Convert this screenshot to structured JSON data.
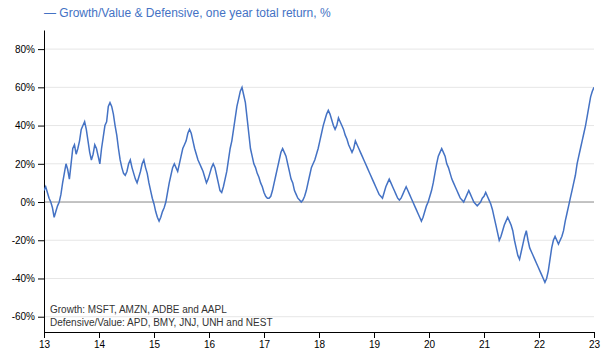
{
  "chart_data": {
    "type": "line",
    "title": "— Growth/Value & Defensive, one year total return, %",
    "annotations": [
      "Growth: MSFT, AMZN, ADBE and AAPL",
      "Defensive/Value: APD, BMY, JNJ, UNH and NEST"
    ],
    "color": "#4472C4",
    "grid": true,
    "xlim": [
      13,
      23
    ],
    "ylim": [
      -0.68,
      0.9
    ],
    "xticks": [
      13,
      14,
      15,
      16,
      17,
      18,
      19,
      20,
      21,
      22,
      23
    ],
    "yticks": [
      {
        "value": -0.6,
        "label": "-60%"
      },
      {
        "value": -0.4,
        "label": "-40%"
      },
      {
        "value": -0.2,
        "label": "-20%"
      },
      {
        "value": 0.0,
        "label": "0%"
      },
      {
        "value": 0.2,
        "label": "20%"
      },
      {
        "value": 0.4,
        "label": "40%"
      },
      {
        "value": 0.6,
        "label": "60%"
      },
      {
        "value": 0.8,
        "label": "80%"
      }
    ],
    "x": [
      13,
      13.0308,
      13.0615,
      13.0923,
      13.1231,
      13.1538,
      13.1846,
      13.2154,
      13.2462,
      13.2769,
      13.3077,
      13.3385,
      13.3692,
      13.4,
      13.4308,
      13.4615,
      13.4923,
      13.5231,
      13.5538,
      13.5846,
      13.6154,
      13.6462,
      13.6769,
      13.7077,
      13.7385,
      13.7692,
      13.8,
      13.8308,
      13.8615,
      13.8923,
      13.9231,
      13.9538,
      13.9846,
      14.0154,
      14.0462,
      14.0769,
      14.1077,
      14.1385,
      14.1692,
      14.2,
      14.2308,
      14.2615,
      14.2923,
      14.3231,
      14.3538,
      14.3846,
      14.4154,
      14.4462,
      14.4769,
      14.5077,
      14.5385,
      14.5692,
      14.6,
      14.6308,
      14.6615,
      14.6923,
      14.7231,
      14.7538,
      14.7846,
      14.8154,
      14.8462,
      14.8769,
      14.9077,
      14.9385,
      14.9692,
      15,
      15.0308,
      15.0615,
      15.0923,
      15.1231,
      15.1538,
      15.1846,
      15.2154,
      15.2462,
      15.2769,
      15.3077,
      15.3385,
      15.3692,
      15.4,
      15.4308,
      15.4615,
      15.4923,
      15.5231,
      15.5538,
      15.5846,
      15.6154,
      15.6462,
      15.6769,
      15.7077,
      15.7385,
      15.7692,
      15.8,
      15.8308,
      15.8615,
      15.8923,
      15.9231,
      15.9538,
      15.9846,
      16.0154,
      16.0462,
      16.0769,
      16.1077,
      16.1385,
      16.1692,
      16.2,
      16.2308,
      16.2615,
      16.2923,
      16.3231,
      16.3538,
      16.3846,
      16.4154,
      16.4462,
      16.4769,
      16.5077,
      16.5385,
      16.5692,
      16.6,
      16.6308,
      16.6615,
      16.6923,
      16.7231,
      16.7538,
      16.7846,
      16.8154,
      16.8462,
      16.8769,
      16.9077,
      16.9385,
      16.9692,
      17,
      17.0308,
      17.0615,
      17.0923,
      17.1231,
      17.1538,
      17.1846,
      17.2154,
      17.2462,
      17.2769,
      17.3077,
      17.3385,
      17.3692,
      17.4,
      17.4308,
      17.4615,
      17.4923,
      17.5231,
      17.5538,
      17.5846,
      17.6154,
      17.6462,
      17.6769,
      17.7077,
      17.7385,
      17.7692,
      17.8,
      17.8308,
      17.8615,
      17.8923,
      17.9231,
      17.9538,
      17.9846,
      18.0154,
      18.0462,
      18.0769,
      18.1077,
      18.1385,
      18.1692,
      18.2,
      18.2308,
      18.2615,
      18.2923,
      18.3231,
      18.3538,
      18.3846,
      18.4154,
      18.4462,
      18.4769,
      18.5077,
      18.5385,
      18.5692,
      18.6,
      18.6308,
      18.6615,
      18.6923,
      18.7231,
      18.7538,
      18.7846,
      18.8154,
      18.8462,
      18.8769,
      18.9077,
      18.9385,
      18.9692,
      19,
      19.0308,
      19.0615,
      19.0923,
      19.1231,
      19.1538,
      19.1846,
      19.2154,
      19.2462,
      19.2769,
      19.3077,
      19.3385,
      19.3692,
      19.4,
      19.4308,
      19.4615,
      19.4923,
      19.5231,
      19.5538,
      19.5846,
      19.6154,
      19.6462,
      19.6769,
      19.7077,
      19.7385,
      19.7692,
      19.8,
      19.8308,
      19.8615,
      19.8923,
      19.9231,
      19.9538,
      19.9846,
      20.0154,
      20.0462,
      20.0769,
      20.1077,
      20.1385,
      20.1692,
      20.2,
      20.2308,
      20.2615,
      20.2923,
      20.3231,
      20.3538,
      20.3846,
      20.4154,
      20.4462,
      20.4769,
      20.5077,
      20.5385,
      20.5692,
      20.6,
      20.6308,
      20.6615,
      20.6923,
      20.7231,
      20.7538,
      20.7846,
      20.8154,
      20.8462,
      20.8769,
      20.9077,
      20.9385,
      20.9692,
      21,
      21.0308,
      21.0615,
      21.0923,
      21.1231,
      21.1538,
      21.1846,
      21.2154,
      21.2462,
      21.2769,
      21.3077,
      21.3385,
      21.3692,
      21.4,
      21.4308,
      21.4615,
      21.4923,
      21.5231,
      21.5538,
      21.5846,
      21.6154,
      21.6462,
      21.6769,
      21.7077,
      21.7385,
      21.7692,
      21.8,
      21.8308,
      21.8615,
      21.8923,
      21.9231,
      21.9538,
      21.9846,
      22.0154,
      22.0462,
      22.0769,
      22.1077,
      22.1385,
      22.1692,
      22.2,
      22.2308,
      22.2615,
      22.2923,
      22.3231,
      22.3538,
      22.3846,
      22.4154,
      22.4462,
      22.4769,
      22.5077,
      22.5385,
      22.5692,
      22.6,
      22.6308,
      22.6615,
      22.6923,
      22.7231,
      22.7538,
      22.7846,
      22.8154,
      22.8462,
      22.8769,
      22.9077,
      22.9385,
      22.9692,
      23
    ],
    "values": [
      0.06,
      0.08,
      0.05,
      0.02,
      0.0,
      -0.03,
      -0.08,
      -0.05,
      -0.02,
      0.0,
      0.04,
      0.1,
      0.15,
      0.2,
      0.17,
      0.12,
      0.2,
      0.28,
      0.3,
      0.25,
      0.28,
      0.32,
      0.38,
      0.4,
      0.42,
      0.38,
      0.32,
      0.26,
      0.22,
      0.25,
      0.3,
      0.28,
      0.24,
      0.2,
      0.28,
      0.34,
      0.4,
      0.42,
      0.5,
      0.52,
      0.5,
      0.46,
      0.4,
      0.35,
      0.28,
      0.22,
      0.18,
      0.15,
      0.14,
      0.16,
      0.2,
      0.22,
      0.18,
      0.15,
      0.12,
      0.1,
      0.13,
      0.16,
      0.2,
      0.22,
      0.18,
      0.15,
      0.1,
      0.06,
      0.02,
      -0.01,
      -0.05,
      -0.08,
      -0.1,
      -0.08,
      -0.05,
      -0.03,
      0.0,
      0.05,
      0.1,
      0.14,
      0.18,
      0.2,
      0.18,
      0.16,
      0.2,
      0.24,
      0.28,
      0.3,
      0.32,
      0.36,
      0.38,
      0.36,
      0.32,
      0.28,
      0.25,
      0.22,
      0.2,
      0.18,
      0.16,
      0.13,
      0.1,
      0.12,
      0.15,
      0.18,
      0.2,
      0.18,
      0.14,
      0.1,
      0.06,
      0.05,
      0.08,
      0.12,
      0.16,
      0.22,
      0.28,
      0.32,
      0.38,
      0.44,
      0.5,
      0.54,
      0.58,
      0.6,
      0.56,
      0.52,
      0.44,
      0.36,
      0.28,
      0.24,
      0.2,
      0.18,
      0.15,
      0.13,
      0.1,
      0.08,
      0.05,
      0.03,
      0.02,
      0.02,
      0.03,
      0.06,
      0.1,
      0.14,
      0.18,
      0.22,
      0.26,
      0.28,
      0.26,
      0.24,
      0.2,
      0.16,
      0.12,
      0.1,
      0.06,
      0.04,
      0.02,
      0.01,
      0.0,
      0.01,
      0.03,
      0.06,
      0.1,
      0.14,
      0.18,
      0.2,
      0.22,
      0.25,
      0.28,
      0.32,
      0.36,
      0.4,
      0.43,
      0.46,
      0.48,
      0.46,
      0.43,
      0.4,
      0.38,
      0.4,
      0.44,
      0.42,
      0.4,
      0.38,
      0.35,
      0.33,
      0.3,
      0.28,
      0.26,
      0.28,
      0.32,
      0.3,
      0.28,
      0.26,
      0.24,
      0.22,
      0.2,
      0.18,
      0.16,
      0.14,
      0.12,
      0.1,
      0.08,
      0.06,
      0.04,
      0.03,
      0.02,
      0.05,
      0.08,
      0.1,
      0.12,
      0.1,
      0.08,
      0.06,
      0.04,
      0.02,
      0.01,
      0.02,
      0.04,
      0.06,
      0.08,
      0.06,
      0.04,
      0.02,
      0.0,
      -0.02,
      -0.04,
      -0.06,
      -0.08,
      -0.1,
      -0.08,
      -0.05,
      -0.02,
      0.0,
      0.03,
      0.06,
      0.1,
      0.15,
      0.2,
      0.24,
      0.26,
      0.28,
      0.26,
      0.24,
      0.2,
      0.18,
      0.15,
      0.12,
      0.1,
      0.08,
      0.06,
      0.04,
      0.02,
      0.01,
      0.0,
      0.02,
      0.04,
      0.06,
      0.04,
      0.02,
      0.0,
      -0.01,
      -0.02,
      -0.01,
      0.0,
      0.02,
      0.03,
      0.05,
      0.03,
      0.01,
      -0.01,
      -0.04,
      -0.08,
      -0.12,
      -0.16,
      -0.2,
      -0.18,
      -0.15,
      -0.12,
      -0.1,
      -0.08,
      -0.1,
      -0.12,
      -0.15,
      -0.2,
      -0.24,
      -0.28,
      -0.3,
      -0.26,
      -0.22,
      -0.18,
      -0.15,
      -0.2,
      -0.24,
      -0.26,
      -0.28,
      -0.3,
      -0.32,
      -0.34,
      -0.36,
      -0.38,
      -0.4,
      -0.42,
      -0.4,
      -0.36,
      -0.3,
      -0.24,
      -0.2,
      -0.18,
      -0.2,
      -0.22,
      -0.2,
      -0.18,
      -0.15,
      -0.1,
      -0.06,
      -0.02,
      0.02,
      0.06,
      0.1,
      0.14,
      0.2,
      0.24,
      0.28,
      0.32,
      0.36,
      0.4,
      0.45,
      0.5,
      0.55,
      0.58,
      0.6
    ]
  }
}
